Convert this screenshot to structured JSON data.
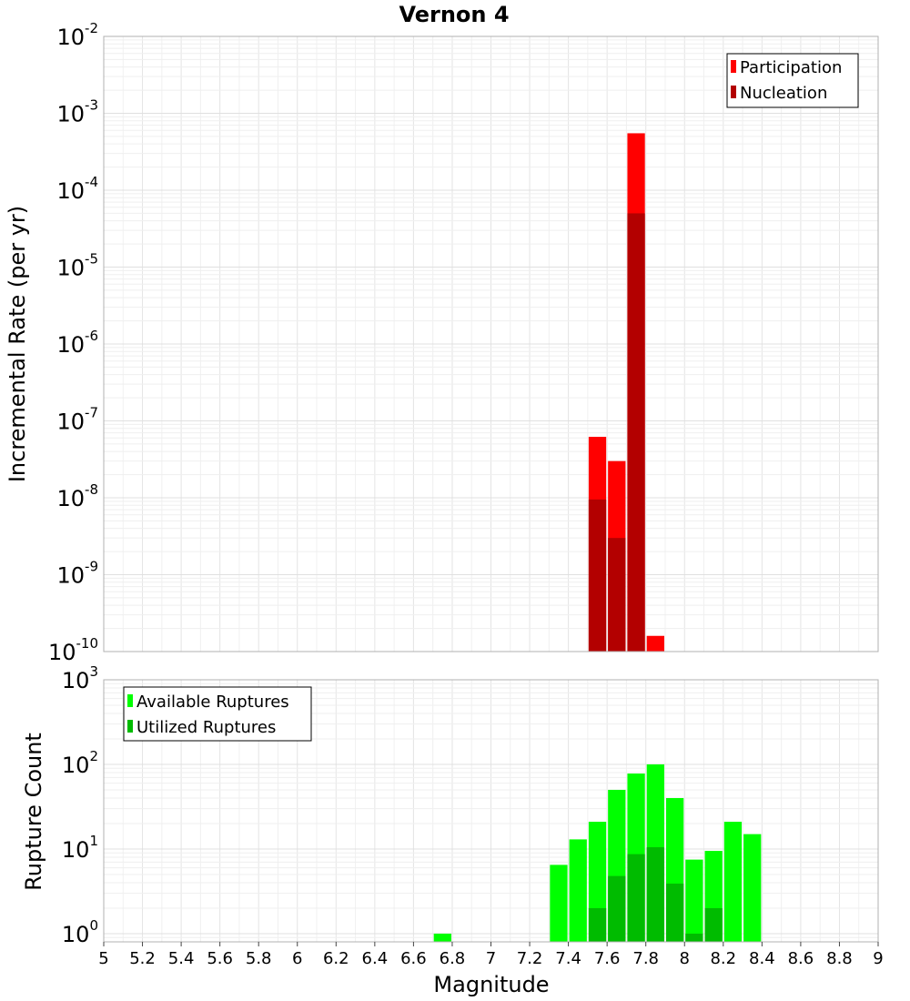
{
  "chart_data": [
    {
      "type": "bar",
      "title": "Vernon 4",
      "xlabel": "Magnitude",
      "ylabel": "Incremental Rate (per yr)",
      "yscale": "log",
      "ylim": [
        1e-10,
        0.01
      ],
      "xlim": [
        5,
        9
      ],
      "grid": true,
      "legend_position": "top-right",
      "bar_width": 0.1,
      "y_ticks": [
        {
          "base": "10",
          "exp": "-10",
          "value": 1e-10
        },
        {
          "base": "10",
          "exp": "-9",
          "value": 1e-09
        },
        {
          "base": "10",
          "exp": "-8",
          "value": 1e-08
        },
        {
          "base": "10",
          "exp": "-7",
          "value": 1e-07
        },
        {
          "base": "10",
          "exp": "-6",
          "value": 1e-06
        },
        {
          "base": "10",
          "exp": "-5",
          "value": 1e-05
        },
        {
          "base": "10",
          "exp": "-4",
          "value": 0.0001
        },
        {
          "base": "10",
          "exp": "-3",
          "value": 0.001
        },
        {
          "base": "10",
          "exp": "-2",
          "value": 0.01
        }
      ],
      "series": [
        {
          "name": "Participation",
          "color": "#ff0000",
          "x": [
            7.55,
            7.65,
            7.75,
            7.85
          ],
          "values": [
            6.2e-08,
            3e-08,
            0.00055,
            1.6e-10
          ]
        },
        {
          "name": "Nucleation",
          "color": "#b30000",
          "x": [
            7.55,
            7.65,
            7.75
          ],
          "values": [
            9.5e-09,
            3e-09,
            5e-05
          ]
        }
      ]
    },
    {
      "type": "bar",
      "xlabel": "Magnitude",
      "ylabel": "Rupture Count",
      "yscale": "log",
      "ylim": [
        0.8,
        1000
      ],
      "xlim": [
        5,
        9
      ],
      "grid": true,
      "legend_position": "top-left",
      "bar_width": 0.1,
      "y_ticks": [
        {
          "base": "10",
          "exp": "0",
          "value": 1
        },
        {
          "base": "10",
          "exp": "1",
          "value": 10
        },
        {
          "base": "10",
          "exp": "2",
          "value": 100
        },
        {
          "base": "10",
          "exp": "3",
          "value": 1000
        }
      ],
      "series": [
        {
          "name": "Available Ruptures",
          "color": "#00ff00",
          "x": [
            6.75,
            7.35,
            7.45,
            7.55,
            7.65,
            7.75,
            7.85,
            7.95,
            8.05,
            8.15,
            8.25,
            8.35
          ],
          "values": [
            1,
            6.5,
            13,
            21,
            50,
            78,
            100,
            40,
            7.5,
            9.5,
            21,
            15
          ]
        },
        {
          "name": "Utilized Ruptures",
          "color": "#00bb00",
          "x": [
            7.55,
            7.65,
            7.75,
            7.85,
            7.95,
            8.05,
            8.15
          ],
          "values": [
            2,
            4.8,
            8.7,
            10.5,
            3.9,
            1,
            2
          ]
        }
      ]
    }
  ],
  "x_ticks": [
    "5",
    "5.2",
    "5.4",
    "5.6",
    "5.8",
    "6",
    "6.2",
    "6.4",
    "6.6",
    "6.8",
    "7",
    "7.2",
    "7.4",
    "7.6",
    "7.8",
    "8",
    "8.2",
    "8.4",
    "8.6",
    "8.8",
    "9"
  ]
}
